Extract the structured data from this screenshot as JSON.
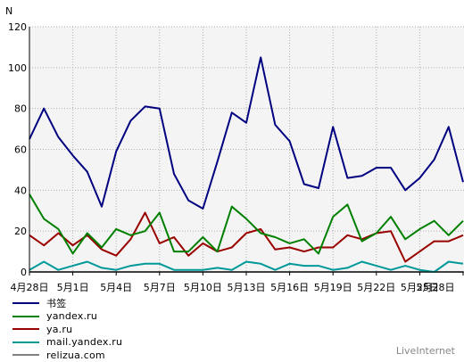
{
  "chart_data": {
    "type": "line",
    "ylabel": "N",
    "ylim": [
      0,
      120
    ],
    "yticks": [
      0,
      20,
      40,
      60,
      80,
      100,
      120
    ],
    "grid": true,
    "legend_position": "bottom-left",
    "x_start": "4月28日",
    "x_end": "5月28日",
    "xtick_labels": [
      "4月28日",
      "5月1日",
      "5月4日",
      "5月7日",
      "5月10日",
      "5月13日",
      "5月16日",
      "5月19日",
      "5月22日",
      "5月25日",
      "5月28日"
    ],
    "series": [
      {
        "name": "书签",
        "color": "#000080",
        "values": [
          65,
          80,
          66,
          57,
          49,
          32,
          59,
          74,
          81,
          80,
          48,
          35,
          31,
          54,
          78,
          73,
          105,
          72,
          64,
          43,
          41,
          71,
          46,
          47,
          51,
          51,
          40,
          46,
          55,
          71,
          44
        ]
      },
      {
        "name": "yandex.ru",
        "color": "#008000",
        "values": [
          38,
          26,
          21,
          9,
          19,
          12,
          21,
          18,
          20,
          29,
          10,
          10,
          17,
          10,
          32,
          26,
          19,
          17,
          14,
          16,
          9,
          27,
          33,
          15,
          19,
          27,
          16,
          21,
          25,
          18,
          25
        ]
      },
      {
        "name": "ya.ru",
        "color": "#990000",
        "values": [
          18,
          13,
          19,
          13,
          18,
          11,
          8,
          16,
          29,
          14,
          17,
          8,
          14,
          10,
          12,
          19,
          21,
          11,
          12,
          10,
          12,
          12,
          18,
          16,
          19,
          20,
          5,
          10,
          15,
          15,
          18
        ]
      },
      {
        "name": "mail.yandex.ru",
        "color": "#009999",
        "values": [
          1,
          5,
          1,
          3,
          5,
          2,
          1,
          3,
          4,
          4,
          1,
          1,
          1,
          2,
          1,
          5,
          4,
          1,
          4,
          3,
          3,
          1,
          2,
          5,
          3,
          1,
          3,
          1,
          0,
          5,
          4
        ]
      },
      {
        "name": "relizua.com",
        "color": "#808080",
        "values": [
          0,
          0,
          0,
          0,
          0,
          0,
          0,
          0,
          0,
          0,
          0,
          0,
          0,
          0,
          0,
          0,
          0,
          0,
          0,
          0,
          0,
          0,
          0,
          0,
          0,
          0,
          0,
          0,
          0,
          0,
          0
        ]
      }
    ]
  },
  "brand": "LiveInternet"
}
